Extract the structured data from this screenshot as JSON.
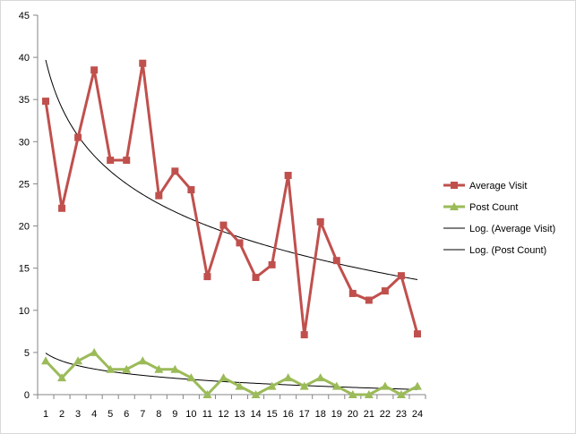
{
  "chart_data": {
    "type": "line",
    "x": [
      1,
      2,
      3,
      4,
      5,
      6,
      7,
      8,
      9,
      10,
      11,
      12,
      13,
      14,
      15,
      16,
      17,
      18,
      19,
      20,
      21,
      22,
      23,
      24
    ],
    "ylim": [
      0,
      45
    ],
    "yticks": [
      0,
      5,
      10,
      15,
      20,
      25,
      30,
      35,
      40,
      45
    ],
    "grid": false,
    "legend_position": "right",
    "series": [
      {
        "name": "Average Visit",
        "color": "#c0504d",
        "marker": "square",
        "values": [
          34.8,
          22.1,
          30.5,
          38.5,
          27.8,
          27.8,
          39.3,
          23.6,
          26.5,
          24.3,
          14.0,
          20.1,
          18.0,
          13.9,
          15.4,
          26.0,
          7.1,
          20.5,
          15.9,
          12.0,
          11.2,
          12.3,
          14.1,
          7.2
        ]
      },
      {
        "name": "Post Count",
        "color": "#9bbb59",
        "marker": "triangle",
        "values": [
          4,
          2,
          4,
          5,
          3,
          3,
          4,
          3,
          3,
          2,
          0,
          2,
          1,
          0,
          1,
          2,
          1,
          2,
          1,
          0,
          0,
          1,
          0,
          1
        ]
      }
    ],
    "trendlines": [
      {
        "name": "Log. (Average Visit)",
        "type": "logarithmic",
        "color": "#000000",
        "intercept": 39.7,
        "slope": -8.2
      },
      {
        "name": "Log. (Post Count)",
        "type": "logarithmic",
        "color": "#000000",
        "intercept": 4.93,
        "slope": -1.36
      }
    ]
  }
}
